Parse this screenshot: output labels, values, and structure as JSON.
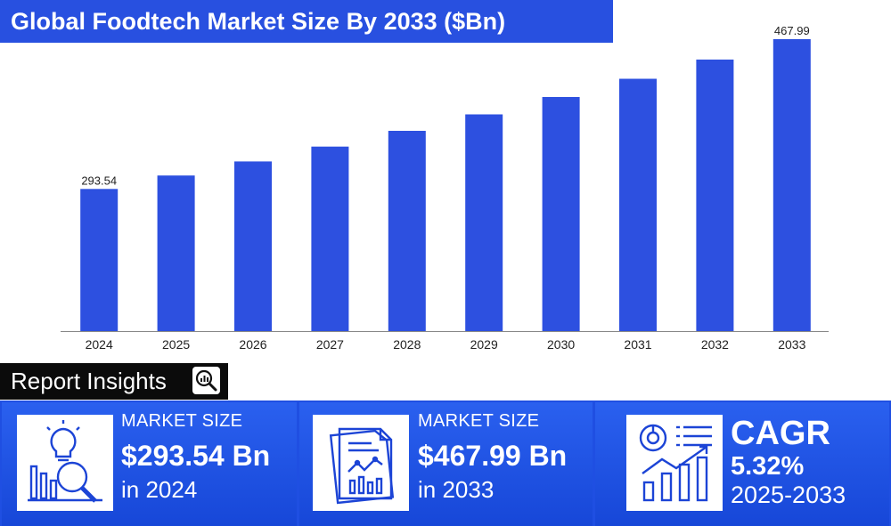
{
  "title": "Global Foodtech Market Size By 2033 ($Bn)",
  "chart_data": {
    "type": "bar",
    "categories": [
      "2024",
      "2025",
      "2026",
      "2027",
      "2028",
      "2029",
      "2030",
      "2031",
      "2032",
      "2033"
    ],
    "values": [
      293.54,
      309.2,
      325.6,
      342.9,
      361.2,
      380.4,
      400.6,
      421.9,
      444.3,
      467.99
    ],
    "data_labels": [
      "293.54",
      "",
      "",
      "",
      "",
      "",
      "",
      "",
      "",
      "467.99"
    ],
    "bar_color": "#2d50e0",
    "ylim": [
      128,
      480
    ],
    "grid": false,
    "legend": "none"
  },
  "insights": {
    "tab_label": "Report Insights",
    "tab_icon": "magnifier-chart-icon",
    "cards": [
      {
        "icon": "lightbulb-chart-magnifier-icon",
        "caption": "MARKET SIZE",
        "value": "$293.54 Bn",
        "year": "in 2024"
      },
      {
        "icon": "report-document-chart-icon",
        "caption": "MARKET SIZE",
        "value": "$467.99 Bn",
        "year": "in 2033"
      },
      {
        "icon": "pie-growth-chart-icon",
        "title": "CAGR",
        "value": "5.32%",
        "period": "2025-2033"
      }
    ]
  },
  "colors": {
    "accent": "#2850e0",
    "bar": "#2d50e0",
    "tab": "#0b0b0b",
    "card": "#1f4fe2"
  }
}
